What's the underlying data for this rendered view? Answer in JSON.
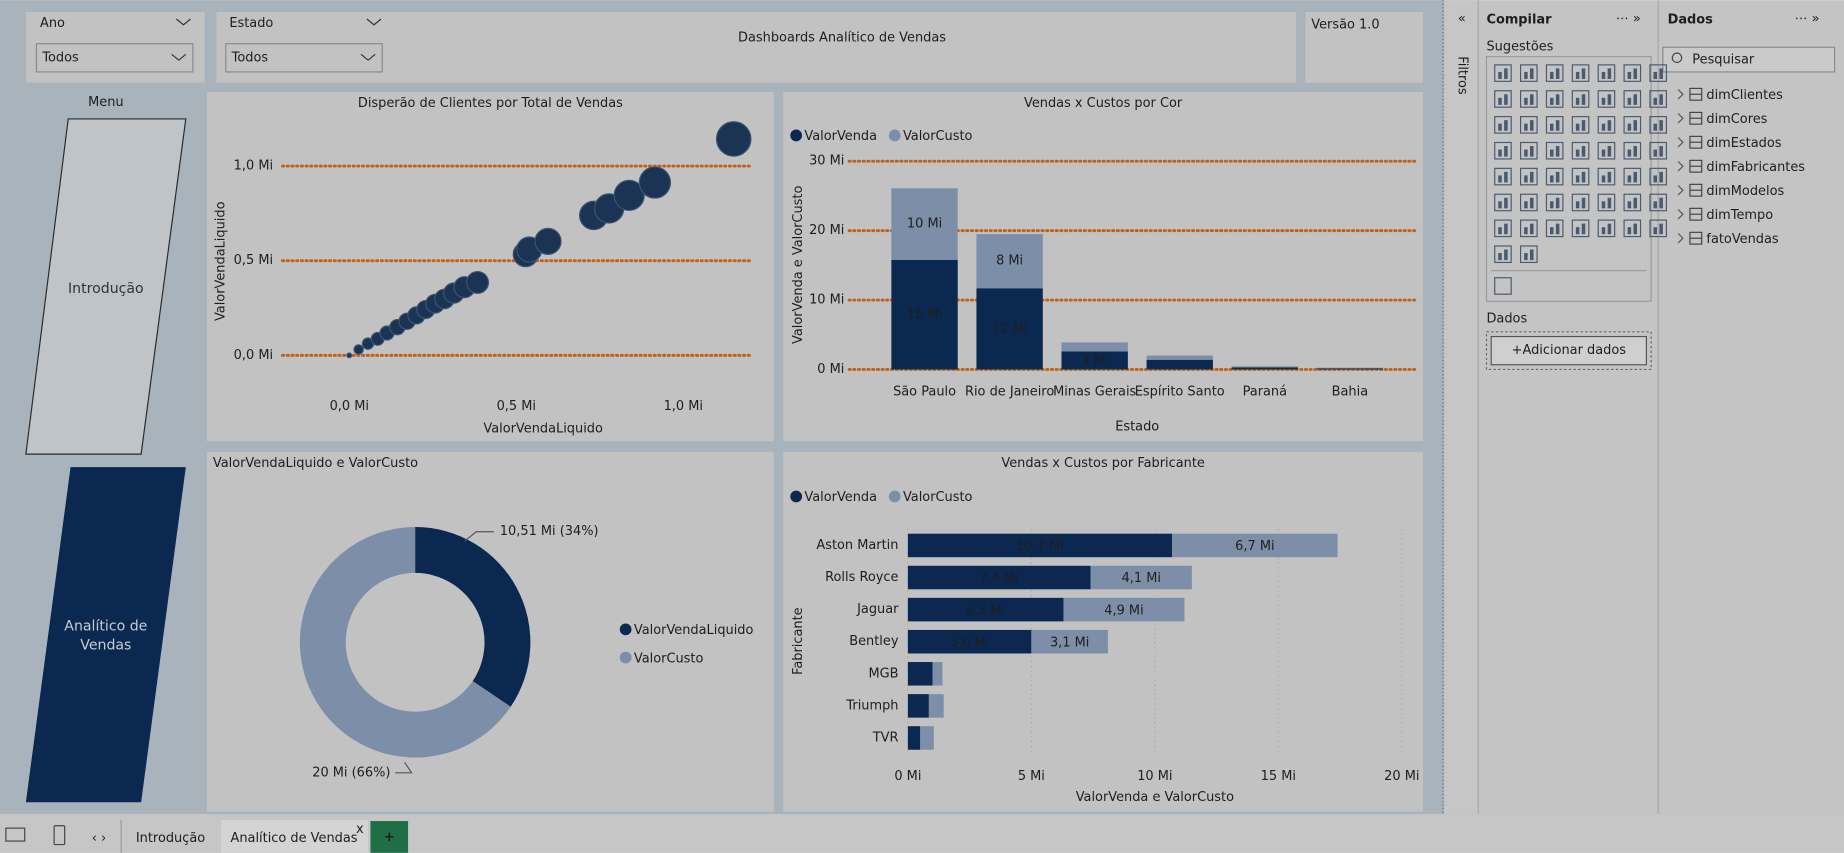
{
  "slicers": [
    {
      "label": "Ano",
      "value": "Todos"
    },
    {
      "label": "Estado",
      "value": "Todos"
    }
  ],
  "header": {
    "title": "Dashboards Analítico de Vendas",
    "version": "Versão 1.0"
  },
  "menu": {
    "title": "Menu",
    "buttons": [
      "Introdução",
      "Analítico de Vendas"
    ]
  },
  "chart_data": [
    {
      "type": "scatter",
      "title": "Disperão de Clientes por Total de Vendas",
      "x_label": "ValorVendaLiquido",
      "y_label": "ValorVendaLiquido",
      "color": "#1b3454",
      "grid": true,
      "grid_color": "#c0621a",
      "x": [
        0,
        0.028,
        0.056,
        0.085,
        0.113,
        0.144,
        0.173,
        0.201,
        0.229,
        0.257,
        0.285,
        0.313,
        0.345,
        0.384,
        0.528,
        0.539,
        0.595,
        0.732,
        0.778,
        0.838,
        0.915,
        1.151
      ],
      "values": [
        0,
        0.031,
        0.062,
        0.087,
        0.118,
        0.149,
        0.18,
        0.211,
        0.242,
        0.273,
        0.298,
        0.329,
        0.36,
        0.385,
        0.534,
        0.559,
        0.602,
        0.739,
        0.776,
        0.845,
        0.913,
        1.143
      ],
      "xlim": [
        -0.2,
        1.22
      ],
      "ylim": [
        -0.09,
        1.22
      ],
      "xticks": [
        {
          "value": 0,
          "label": "0,0 Mi"
        },
        {
          "value": 0.5,
          "label": "0,5 Mi"
        },
        {
          "value": 1,
          "label": "1,0 Mi"
        }
      ],
      "yticks": [
        {
          "value": 0,
          "label": "0,0 Mi"
        },
        {
          "value": 0.5,
          "label": "0,5 Mi"
        },
        {
          "value": 1,
          "label": "1,0 Mi"
        }
      ]
    },
    {
      "type": "bar",
      "orientation": "vertical",
      "stacked": true,
      "title": "Vendas x Custos por Cor",
      "x_label": "Estado",
      "y_label": "ValorVenda e ValorCusto",
      "grid": true,
      "grid_color": "#c0621a",
      "categories": [
        "São Paulo",
        "Rio de Janeiro",
        "Minas Gerais",
        "Espírito Santo",
        "Paraná",
        "Bahia"
      ],
      "series": [
        {
          "name": "ValorVenda",
          "color": "#0b2850",
          "values": [
            15.8,
            11.7,
            2.6,
            1.4,
            0.3,
            0.15
          ],
          "value_labels": [
            "16 Mi",
            "12 Mi",
            "3 Mi",
            null,
            null,
            null
          ]
        },
        {
          "name": "ValorCusto",
          "color": "#7d8fa8",
          "values": [
            10.3,
            7.8,
            1.3,
            0.6,
            0.15,
            0.1
          ],
          "value_labels": [
            "10 Mi",
            "8 Mi",
            null,
            null,
            null,
            null
          ]
        }
      ],
      "ylim": [
        0,
        31
      ],
      "yticks": [
        {
          "value": 0,
          "label": "0 Mi"
        },
        {
          "value": 10,
          "label": "10 Mi"
        },
        {
          "value": 20,
          "label": "20 Mi"
        },
        {
          "value": 30,
          "label": "30 Mi"
        }
      ]
    },
    {
      "type": "pie",
      "donut": true,
      "title": "ValorVendaLiquido e ValorCusto",
      "categories": [
        "ValorVendaLiquido",
        "ValorCusto"
      ],
      "values": [
        10.51,
        20
      ],
      "value_labels": [
        "10,51 Mi (34%)",
        "20 Mi (66%)"
      ],
      "colors": [
        "#0b2850",
        "#7d8fa8"
      ]
    },
    {
      "type": "bar",
      "orientation": "horizontal",
      "stacked": true,
      "title": "Vendas x Custos por Fabricante",
      "x_label": "ValorVenda e ValorCusto",
      "y_label": "Fabricante",
      "grid": true,
      "grid_color": "#a8a8a8",
      "categories": [
        "Aston Martin",
        "Rolls Royce",
        "Jaguar",
        "Bentley",
        "MGB",
        "Triumph",
        "TVR"
      ],
      "series": [
        {
          "name": "ValorVenda",
          "color": "#0b2850",
          "values": [
            10.7,
            7.4,
            6.3,
            5.0,
            1.0,
            0.85,
            0.5
          ],
          "value_labels": [
            "10,7 Mi",
            "7,4 Mi",
            "6,3 Mi",
            "5,0 Mi",
            null,
            null,
            null
          ]
        },
        {
          "name": "ValorCusto",
          "color": "#7d8fa8",
          "values": [
            6.7,
            4.1,
            4.9,
            3.1,
            0.4,
            0.6,
            0.55
          ],
          "value_labels": [
            "6,7 Mi",
            "4,1 Mi",
            "4,9 Mi",
            "3,1 Mi",
            null,
            null,
            null
          ]
        }
      ],
      "xlim": [
        0,
        20.6
      ],
      "xticks": [
        {
          "value": 0,
          "label": "0 Mi"
        },
        {
          "value": 5,
          "label": "5 Mi"
        },
        {
          "value": 10,
          "label": "10 Mi"
        },
        {
          "value": 15,
          "label": "15 Mi"
        },
        {
          "value": 20,
          "label": "20 Mi"
        }
      ]
    }
  ],
  "filters_pane": {
    "title": "Filtros"
  },
  "build_pane": {
    "title": "Compilar",
    "suggestions": "Sugestões",
    "data_label": "Dados",
    "add_data": "+Adicionar dados"
  },
  "data_pane": {
    "title": "Dados",
    "search": "Pesquisar",
    "tables": [
      "dimClientes",
      "dimCores",
      "dimEstados",
      "dimFabricantes",
      "dimModelos",
      "dimTempo",
      "fatoVendas"
    ]
  },
  "tabs": [
    "Introdução",
    "Analítico de Vendas"
  ]
}
